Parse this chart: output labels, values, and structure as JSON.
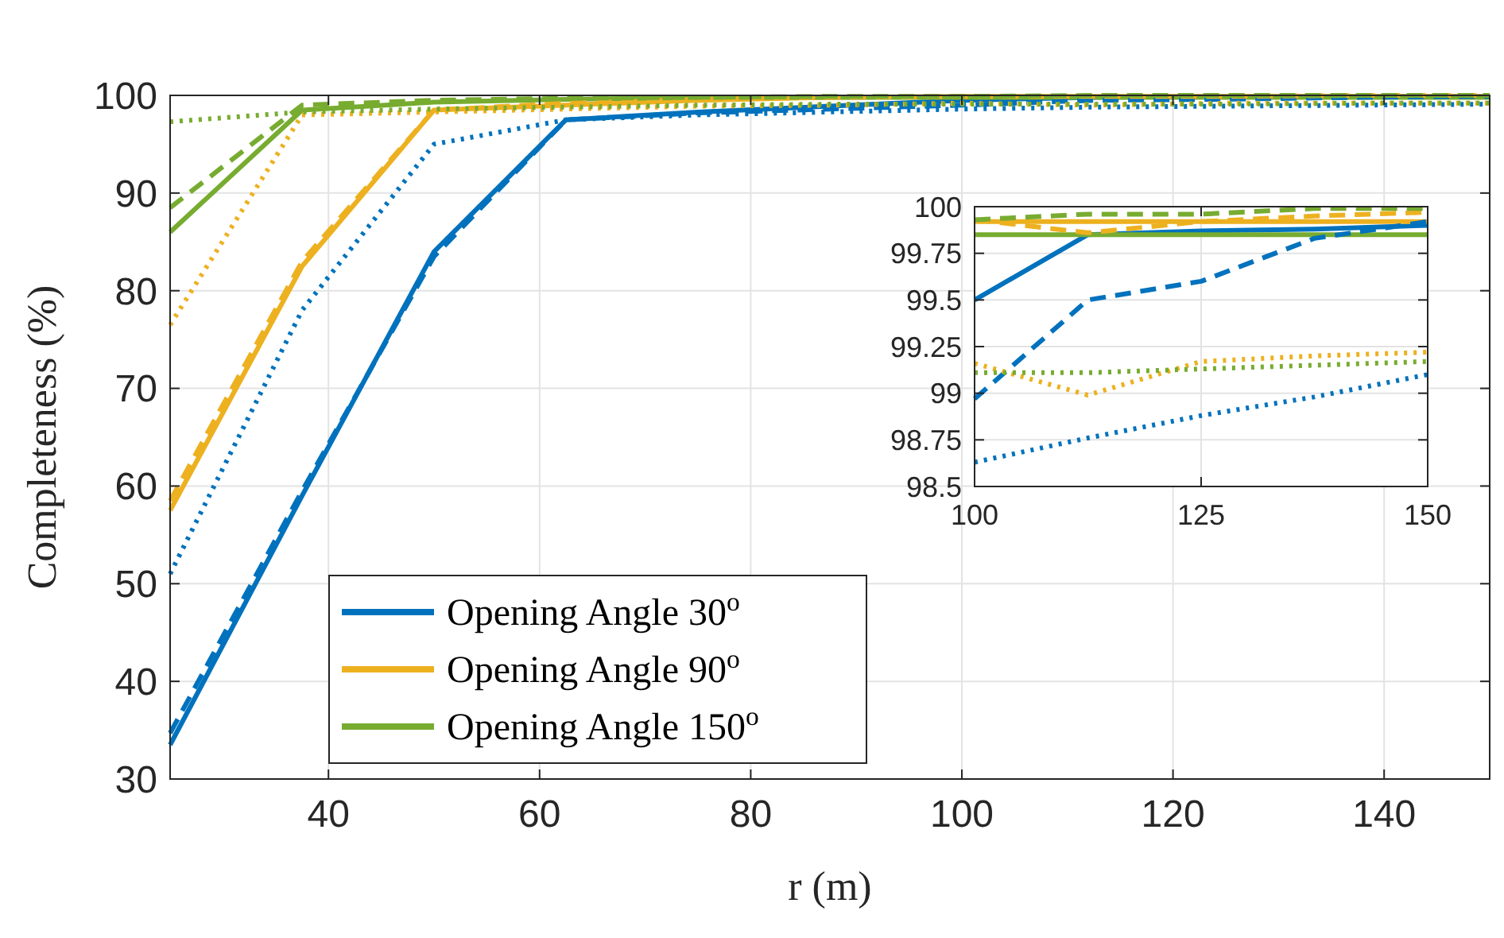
{
  "chart_data": [
    {
      "type": "line",
      "xlabel": "r (m)",
      "ylabel": "Completeness (%)",
      "x": [
        25,
        37.5,
        50,
        62.5,
        75,
        87.5,
        100,
        112.5,
        125,
        137.5,
        150
      ],
      "xlim": [
        25,
        150
      ],
      "xticks": [
        40,
        60,
        80,
        100,
        120,
        140
      ],
      "ylim": [
        30,
        100
      ],
      "yticks": [
        30,
        40,
        50,
        60,
        70,
        80,
        90,
        100
      ],
      "grid": true,
      "legend": "bottom left",
      "marker": "none",
      "series": [
        {
          "name": "Opening Angle 30$^{o}$",
          "color": "#0072bd",
          "line_style": "solid",
          "values": [
            33.5,
            59,
            84,
            97.5,
            98.3,
            98.9,
            99.5,
            99.8,
            99.9,
            99.9,
            99.9
          ]
        },
        {
          "name": "Opening Angle 90$^{o}$",
          "color": "#edb120",
          "line_style": "solid",
          "values": [
            57.5,
            82.5,
            98.5,
            99,
            99.5,
            99.8,
            99.9,
            99.9,
            99.9,
            99.9,
            99.9
          ]
        },
        {
          "name": "Opening Angle 150$^{o}$",
          "color": "#77ac30",
          "line_style": "solid",
          "values": [
            86,
            98.5,
            99.3,
            99.6,
            99.8,
            99.8,
            99.8,
            99.8,
            99.8,
            99.8,
            99.8
          ]
        },
        {
          "color": "#0072bd",
          "line_style": "dashed",
          "values": [
            34.7,
            59.5,
            83.5,
            97.5,
            98.2,
            98.6,
            99,
            99.5,
            99.6,
            99.8,
            99.9
          ]
        },
        {
          "color": "#edb120",
          "line_style": "dashed",
          "values": [
            58.5,
            83,
            98.5,
            99.2,
            99.6,
            99.8,
            99.9,
            99.9,
            99.9,
            100,
            100
          ]
        },
        {
          "color": "#77ac30",
          "line_style": "dashed",
          "values": [
            88.5,
            99,
            99.5,
            99.7,
            99.8,
            99.9,
            99.9,
            100,
            100,
            100,
            100
          ]
        },
        {
          "color": "#0072bd",
          "line_style": "dotted",
          "values": [
            51,
            78,
            95,
            97.5,
            98,
            98.3,
            98.6,
            98.8,
            98.9,
            99,
            99.1
          ]
        },
        {
          "color": "#edb120",
          "line_style": "dotted",
          "values": [
            76.5,
            98,
            98.3,
            98.6,
            98.9,
            99,
            99.2,
            99,
            99.2,
            99.2,
            99.2
          ]
        },
        {
          "color": "#77ac30",
          "line_style": "dotted",
          "values": [
            97.3,
            98.3,
            98.6,
            98.8,
            99,
            99.1,
            99.1,
            99.1,
            99.1,
            99.2,
            99.2
          ]
        }
      ]
    },
    {
      "type": "line",
      "x": [
        100,
        112.5,
        125,
        137.5,
        150
      ],
      "xlim": [
        100,
        150
      ],
      "xticks": [
        100,
        125,
        150
      ],
      "ylim": [
        98.5,
        100
      ],
      "yticks": [
        98.5,
        98.75,
        99,
        99.25,
        99.5,
        99.75,
        100
      ],
      "grid": true,
      "marker": "none",
      "series": [
        {
          "color": "#0072bd",
          "line_style": "solid",
          "values": [
            99.5,
            99.85,
            99.87,
            99.88,
            99.9
          ]
        },
        {
          "color": "#edb120",
          "line_style": "solid",
          "values": [
            99.92,
            99.92,
            99.92,
            99.92,
            99.92
          ]
        },
        {
          "color": "#77ac30",
          "line_style": "solid",
          "values": [
            99.85,
            99.85,
            99.85,
            99.85,
            99.85
          ]
        },
        {
          "color": "#0072bd",
          "line_style": "dashed",
          "values": [
            98.97,
            99.5,
            99.6,
            99.83,
            99.92
          ]
        },
        {
          "color": "#edb120",
          "line_style": "dashed",
          "values": [
            99.93,
            99.86,
            99.92,
            99.95,
            99.97
          ]
        },
        {
          "color": "#77ac30",
          "line_style": "dashed",
          "values": [
            99.93,
            99.96,
            99.96,
            99.99,
            99.99
          ]
        },
        {
          "color": "#0072bd",
          "line_style": "dotted",
          "values": [
            98.63,
            98.76,
            98.88,
            98.98,
            99.1
          ]
        },
        {
          "color": "#edb120",
          "line_style": "dotted",
          "values": [
            99.16,
            98.99,
            99.17,
            99.2,
            99.22
          ]
        },
        {
          "color": "#77ac30",
          "line_style": "dotted",
          "values": [
            99.11,
            99.11,
            99.13,
            99.15,
            99.17
          ]
        }
      ]
    }
  ]
}
